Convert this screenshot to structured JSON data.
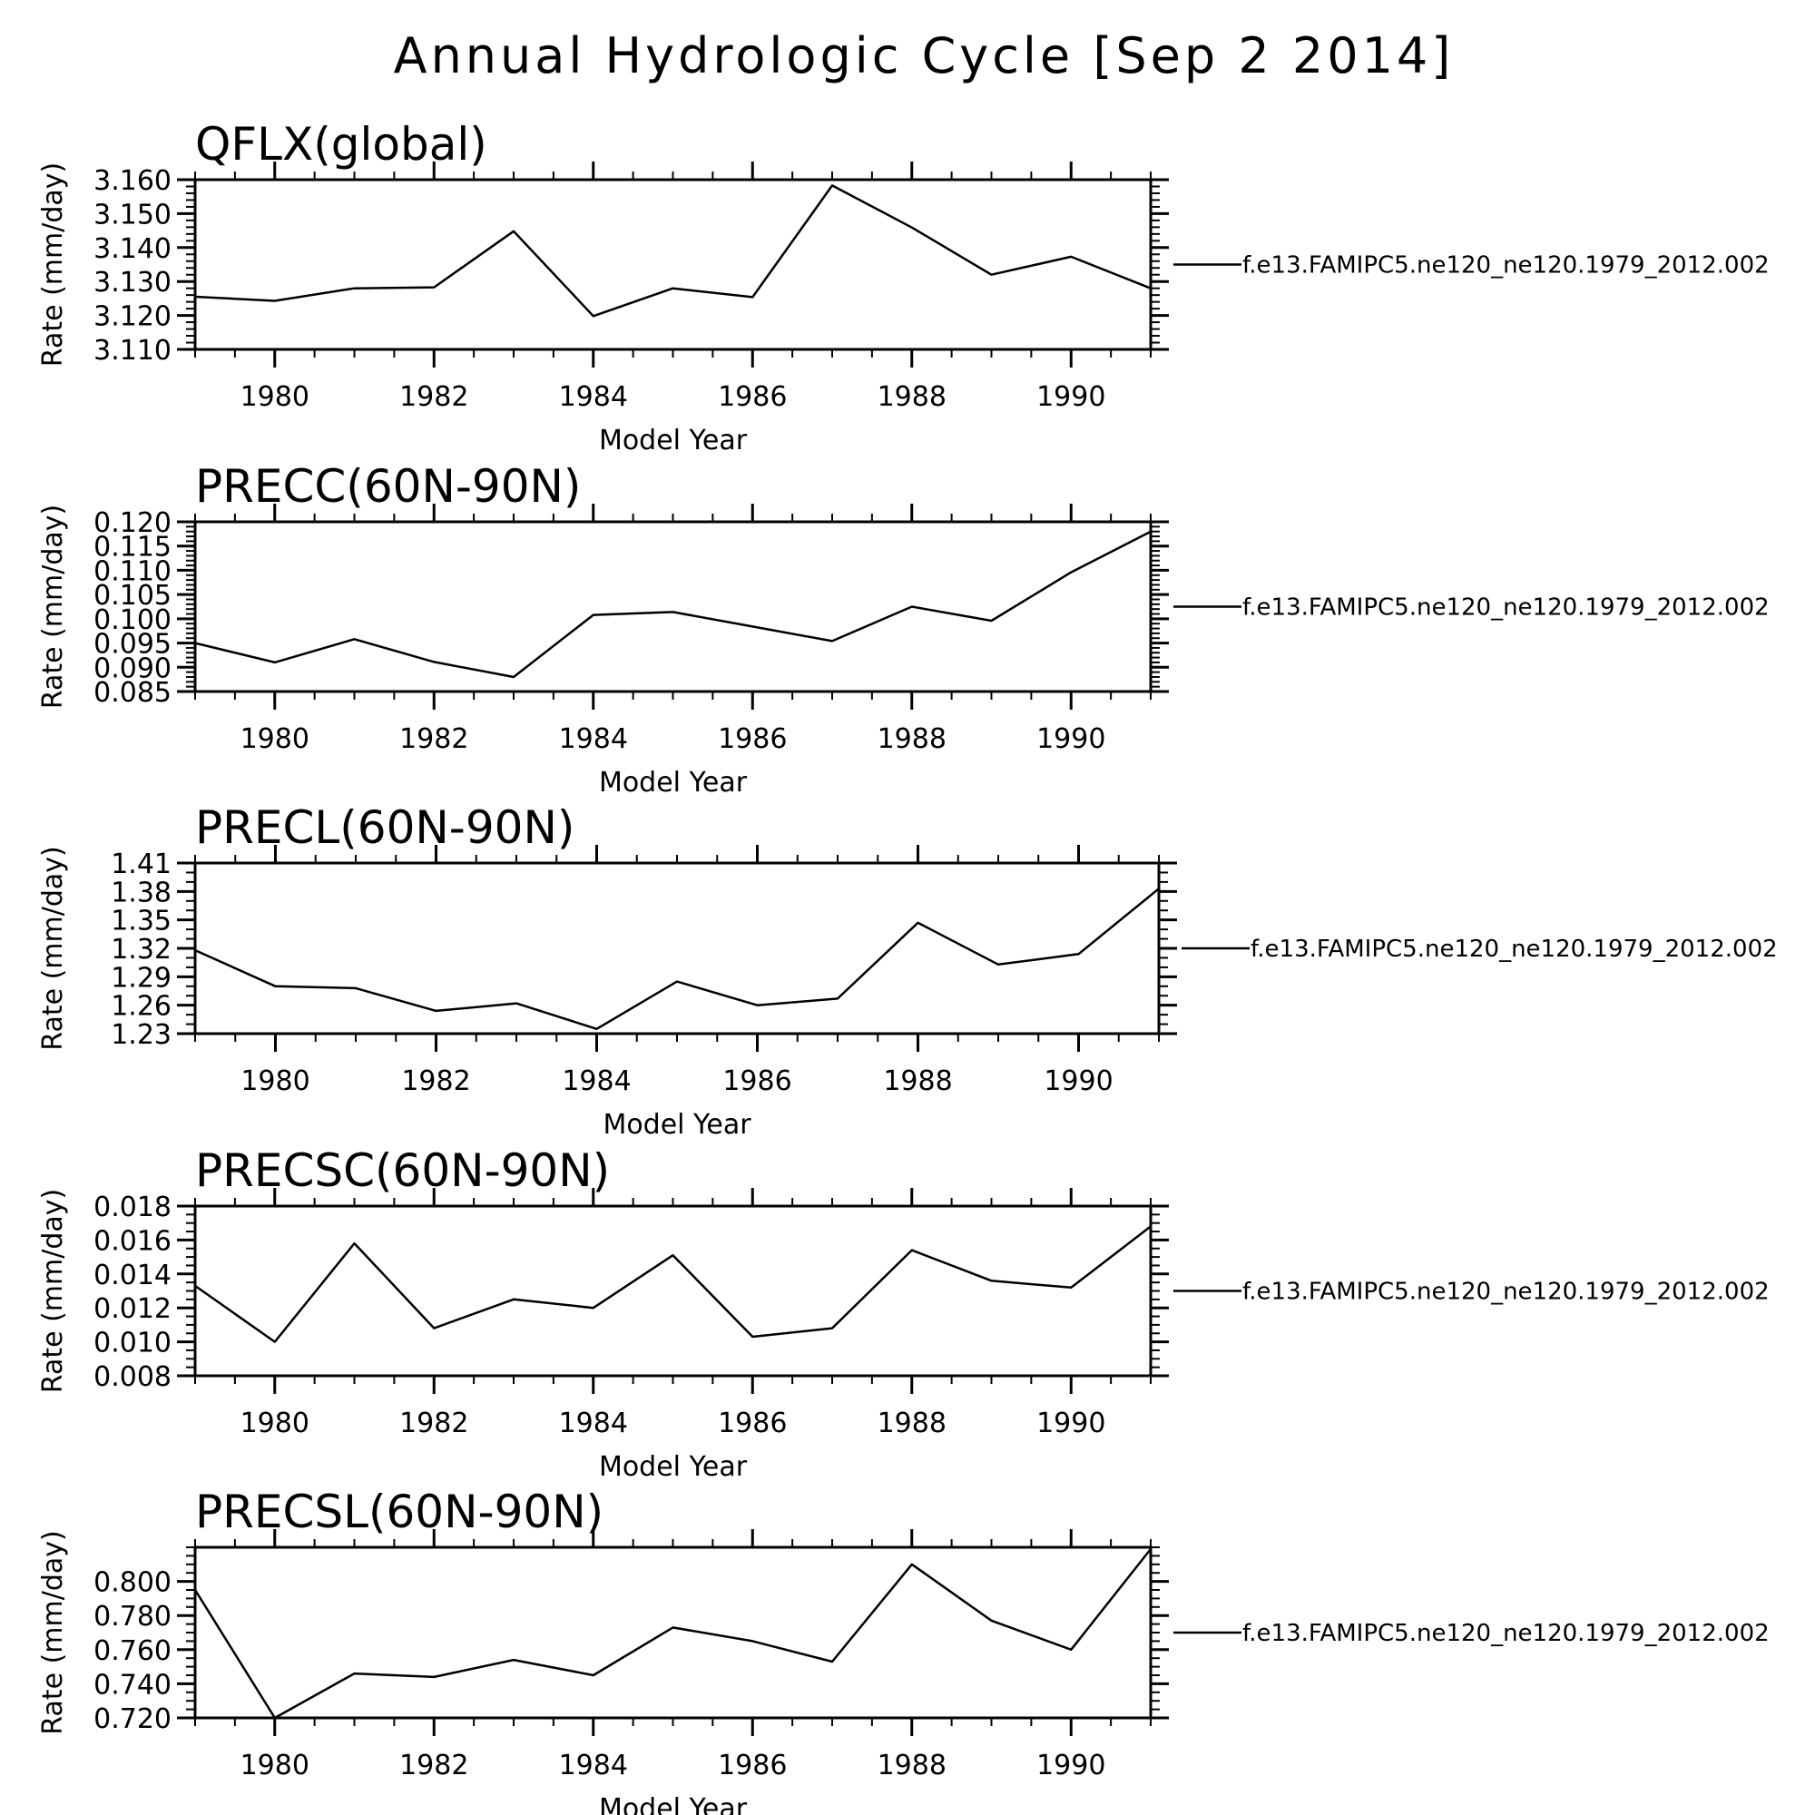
{
  "title": "Annual Hydrologic Cycle [Sep  2 2014]",
  "chart_data": [
    {
      "type": "line",
      "title": "QFLX(global)",
      "xlabel": "Model Year",
      "ylabel": "Rate (mm/day)",
      "xlim": [
        1979,
        1991
      ],
      "ylim": [
        3.11,
        3.16
      ],
      "x_ticks": [
        "1980",
        "1982",
        "1984",
        "1986",
        "1988",
        "1990"
      ],
      "y_ticks": [
        "3.110",
        "3.120",
        "3.130",
        "3.140",
        "3.150",
        "3.160"
      ],
      "grid": false,
      "series": [
        {
          "name": "f.e13.FAMIPC5.ne120_ne120.1979_2012.002",
          "x": [
            1979,
            1980,
            1981,
            1982,
            1983,
            1984,
            1985,
            1986,
            1987,
            1988,
            1989,
            1990,
            1991
          ],
          "values": [
            3.1255,
            3.1243,
            3.128,
            3.1283,
            3.1448,
            3.1198,
            3.128,
            3.1254,
            3.1583,
            3.1459,
            3.132,
            3.1373,
            3.128
          ]
        }
      ]
    },
    {
      "type": "line",
      "title": "PRECC(60N-90N)",
      "xlabel": "Model Year",
      "ylabel": "Rate (mm/day)",
      "xlim": [
        1979,
        1991
      ],
      "ylim": [
        0.085,
        0.12
      ],
      "x_ticks": [
        "1980",
        "1982",
        "1984",
        "1986",
        "1988",
        "1990"
      ],
      "y_ticks": [
        "0.085",
        "0.090",
        "0.095",
        "0.100",
        "0.105",
        "0.110",
        "0.115",
        "0.120"
      ],
      "grid": false,
      "series": [
        {
          "name": "f.e13.FAMIPC5.ne120_ne120.1979_2012.002",
          "x": [
            1979,
            1980,
            1981,
            1982,
            1983,
            1984,
            1985,
            1986,
            1987,
            1988,
            1989,
            1990,
            1991
          ],
          "values": [
            0.095,
            0.091,
            0.0958,
            0.0911,
            0.088,
            0.1008,
            0.1014,
            0.0984,
            0.0954,
            0.1025,
            0.0996,
            0.1096,
            0.118
          ]
        }
      ]
    },
    {
      "type": "line",
      "title": "PRECL(60N-90N)",
      "xlabel": "Model Year",
      "ylabel": "Rate (mm/day)",
      "xlim": [
        1979,
        1991
      ],
      "ylim": [
        1.23,
        1.41
      ],
      "x_ticks": [
        "1980",
        "1982",
        "1984",
        "1986",
        "1988",
        "1990"
      ],
      "y_ticks": [
        "1.23",
        "1.26",
        "1.29",
        "1.32",
        "1.35",
        "1.38",
        "1.41"
      ],
      "grid": false,
      "series": [
        {
          "name": "f.e13.FAMIPC5.ne120_ne120.1979_2012.002",
          "x": [
            1979,
            1980,
            1981,
            1982,
            1983,
            1984,
            1985,
            1986,
            1987,
            1988,
            1989,
            1990,
            1991
          ],
          "values": [
            1.318,
            1.28,
            1.278,
            1.254,
            1.262,
            1.235,
            1.285,
            1.26,
            1.267,
            1.347,
            1.303,
            1.314,
            1.383
          ]
        }
      ]
    },
    {
      "type": "line",
      "title": "PRECSC(60N-90N)",
      "xlabel": "Model Year",
      "ylabel": "Rate (mm/day)",
      "xlim": [
        1979,
        1991
      ],
      "ylim": [
        0.008,
        0.018
      ],
      "x_ticks": [
        "1980",
        "1982",
        "1984",
        "1986",
        "1988",
        "1990"
      ],
      "y_ticks": [
        "0.008",
        "0.010",
        "0.012",
        "0.014",
        "0.016",
        "0.018"
      ],
      "grid": false,
      "series": [
        {
          "name": "f.e13.FAMIPC5.ne120_ne120.1979_2012.002",
          "x": [
            1979,
            1980,
            1981,
            1982,
            1983,
            1984,
            1985,
            1986,
            1987,
            1988,
            1989,
            1990,
            1991
          ],
          "values": [
            0.0133,
            0.01,
            0.0158,
            0.0108,
            0.0125,
            0.012,
            0.0151,
            0.0103,
            0.0108,
            0.0154,
            0.0136,
            0.0132,
            0.0168
          ]
        }
      ]
    },
    {
      "type": "line",
      "title": "PRECSL(60N-90N)",
      "xlabel": "Model Year",
      "ylabel": "Rate (mm/day)",
      "xlim": [
        1979,
        1991
      ],
      "ylim": [
        0.72,
        0.82
      ],
      "x_ticks": [
        "1980",
        "1982",
        "1984",
        "1986",
        "1988",
        "1990"
      ],
      "y_ticks": [
        "0.720",
        "0.740",
        "0.760",
        "0.780",
        "0.800"
      ],
      "grid": false,
      "series": [
        {
          "name": "f.e13.FAMIPC5.ne120_ne120.1979_2012.002",
          "x": [
            1979,
            1980,
            1981,
            1982,
            1983,
            1984,
            1985,
            1986,
            1987,
            1988,
            1989,
            1990,
            1991
          ],
          "values": [
            0.795,
            0.72,
            0.746,
            0.744,
            0.754,
            0.745,
            0.773,
            0.765,
            0.753,
            0.81,
            0.777,
            0.76,
            0.819
          ]
        }
      ]
    }
  ]
}
